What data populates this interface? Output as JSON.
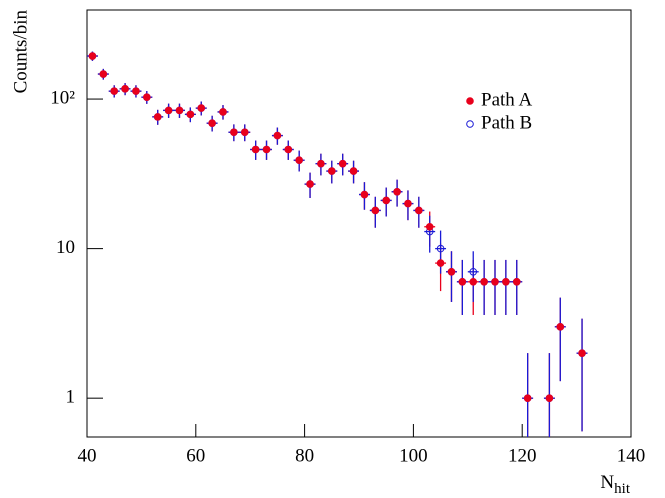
{
  "chart_data": {
    "type": "scatter",
    "y_label": "Counts/bin",
    "x_label": {
      "main": "N",
      "subscript": "hit"
    },
    "log_y": true,
    "x_error_half_width": 1,
    "legend_position": "upper right",
    "xlim": [
      40,
      140
    ],
    "xticks": [
      40,
      60,
      80,
      100,
      120,
      140
    ],
    "ylim": [
      0.55,
      394
    ],
    "yticks": [
      1,
      10,
      {
        "value": 100,
        "label": "10²"
      }
    ],
    "x": [
      41,
      43,
      45,
      47,
      49,
      51,
      53,
      55,
      57,
      59,
      61,
      63,
      65,
      67,
      69,
      71,
      73,
      75,
      77,
      79,
      81,
      83,
      85,
      87,
      89,
      91,
      93,
      95,
      97,
      99,
      101,
      103,
      105,
      107,
      109,
      111,
      113,
      115,
      117,
      119,
      121,
      125,
      127,
      131
    ],
    "series": [
      {
        "name": "Path A",
        "color": "#e8001c",
        "marker": "filled",
        "values": [
          194,
          147,
          113,
          117,
          113,
          103,
          76,
          84,
          84,
          79,
          87,
          69,
          82,
          60,
          60,
          46,
          46,
          57,
          46,
          39,
          27,
          37,
          33,
          37,
          33,
          23,
          18,
          21,
          24,
          20,
          18,
          14,
          8,
          7,
          6,
          6,
          6,
          6,
          6,
          6,
          1,
          1,
          3,
          2
        ],
        "errors": [
          13.9,
          12.1,
          10.6,
          10.8,
          10.6,
          10.1,
          8.7,
          9.2,
          9.2,
          8.9,
          9.3,
          8.3,
          9.1,
          7.7,
          7.7,
          6.8,
          6.8,
          7.5,
          6.8,
          6.2,
          5.2,
          6.1,
          5.7,
          6.1,
          5.7,
          4.8,
          4.2,
          4.6,
          4.9,
          4.5,
          4.2,
          3.7,
          2.8,
          2.6,
          2.4,
          2.4,
          2.4,
          2.4,
          2.4,
          2.4,
          1,
          1,
          1.7,
          1.4
        ]
      },
      {
        "name": "Path B",
        "color": "#1a1ad6",
        "marker": "open",
        "values": [
          194,
          147,
          113,
          117,
          113,
          103,
          76,
          84,
          84,
          79,
          87,
          69,
          82,
          60,
          60,
          46,
          46,
          57,
          46,
          39,
          27,
          37,
          33,
          37,
          33,
          23,
          18,
          21,
          24,
          20,
          18,
          13,
          10,
          7,
          6,
          7,
          6,
          6,
          6,
          6,
          1,
          1,
          3,
          2
        ],
        "errors": [
          13.9,
          12.1,
          10.6,
          10.8,
          10.6,
          10.1,
          8.7,
          9.2,
          9.2,
          8.9,
          9.3,
          8.3,
          9.1,
          7.7,
          7.7,
          6.8,
          6.8,
          7.5,
          6.8,
          6.2,
          5.2,
          6.1,
          5.7,
          6.1,
          5.7,
          4.8,
          4.2,
          4.6,
          4.9,
          4.5,
          4.2,
          3.6,
          3.2,
          2.6,
          2.4,
          2.6,
          2.4,
          2.4,
          2.4,
          2.4,
          1,
          1,
          1.7,
          1.4
        ]
      }
    ]
  }
}
